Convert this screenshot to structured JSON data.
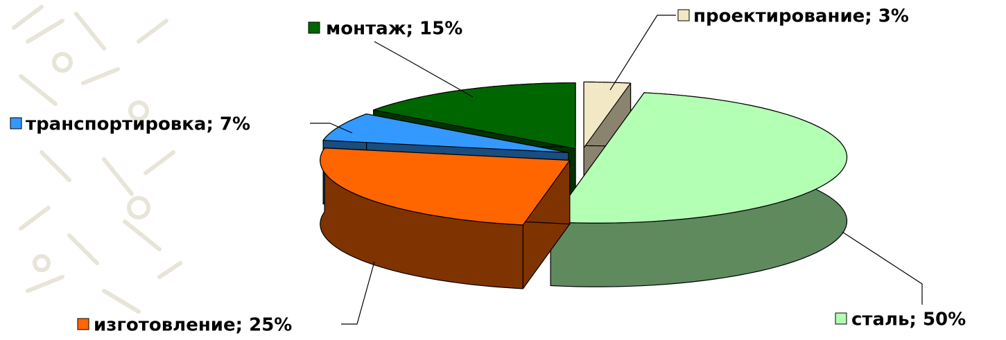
{
  "chart_data": {
    "type": "pie3d",
    "categories": [
      "проектирование; 3%",
      "сталь; 50%",
      "изготовление; 25%",
      "транспортировка; 7%",
      "монтаж; 15%"
    ],
    "values": [
      3,
      50,
      25,
      7,
      15
    ],
    "colors": [
      "#f3e8c6",
      "#b3ffb3",
      "#ff6600",
      "#3399ff",
      "#006600"
    ],
    "side_colors": [
      "#8a846e",
      "#5e8a5e",
      "#7f3300",
      "#1a4d80",
      "#003300"
    ]
  }
}
